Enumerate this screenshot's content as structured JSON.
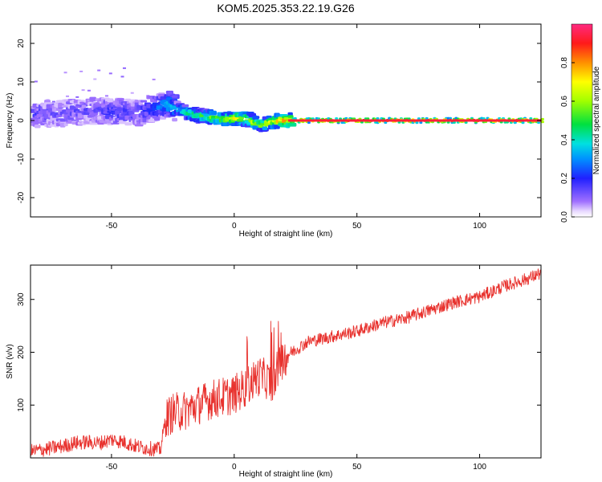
{
  "title": "KOM5.2025.353.22.19.G26",
  "chart_data": [
    {
      "type": "heatmap",
      "xlabel": "Height of straight line (km)",
      "ylabel": "Frequency (Hz)",
      "xlim": [
        -83,
        125
      ],
      "ylim": [
        -25,
        25
      ],
      "xticks": [
        -50,
        0,
        50,
        100
      ],
      "yticks": [
        -20,
        -10,
        0,
        10,
        20
      ],
      "colorbar": {
        "label": "Normalized spectral amplitude",
        "ticks": [
          "0.0",
          "0.2",
          "0.4",
          "0.6",
          "0.8"
        ],
        "range": [
          0,
          1
        ]
      },
      "frequency_track": {
        "x": [
          -83,
          -70,
          -60,
          -50,
          -40,
          -35,
          -30,
          -28,
          -25,
          -20,
          -15,
          -10,
          -5,
          0,
          5,
          8,
          10,
          15,
          20,
          25,
          50,
          100,
          125
        ],
        "y": [
          1.5,
          2.0,
          2.5,
          2.5,
          2.0,
          3.0,
          4.0,
          4.2,
          3.2,
          2.0,
          1.2,
          0.8,
          0.3,
          0.6,
          0.2,
          -0.9,
          -1.0,
          -0.2,
          0.0,
          0.0,
          0.0,
          0.0,
          0.0
        ],
        "amplitude": [
          0.15,
          0.12,
          0.12,
          0.18,
          0.15,
          0.2,
          0.3,
          0.35,
          0.35,
          0.45,
          0.5,
          0.55,
          0.6,
          0.7,
          0.65,
          0.6,
          0.6,
          0.7,
          0.85,
          0.95,
          1.0,
          1.0,
          1.0
        ]
      }
    },
    {
      "type": "line",
      "xlabel": "Height of straight line (km)",
      "ylabel": "SNR (v/v)",
      "xlim": [
        -83,
        125
      ],
      "ylim": [
        0,
        365
      ],
      "xticks": [
        -50,
        0,
        50,
        100
      ],
      "yticks": [
        100,
        200,
        300
      ],
      "series": [
        {
          "color": "#e8322e",
          "x": [
            -83,
            -75,
            -70,
            -65,
            -60,
            -55,
            -50,
            -45,
            -40,
            -35,
            -30,
            -28,
            -25,
            -20,
            -15,
            -10,
            -5,
            0,
            5,
            10,
            13,
            15,
            17,
            20,
            25,
            30,
            40,
            50,
            60,
            70,
            80,
            90,
            100,
            110,
            120,
            125
          ],
          "y": [
            12,
            18,
            22,
            28,
            30,
            28,
            35,
            30,
            22,
            18,
            16,
            75,
            85,
            90,
            100,
            110,
            115,
            120,
            135,
            155,
            150,
            140,
            160,
            190,
            205,
            220,
            230,
            240,
            255,
            265,
            280,
            295,
            305,
            325,
            340,
            350
          ]
        }
      ]
    }
  ]
}
